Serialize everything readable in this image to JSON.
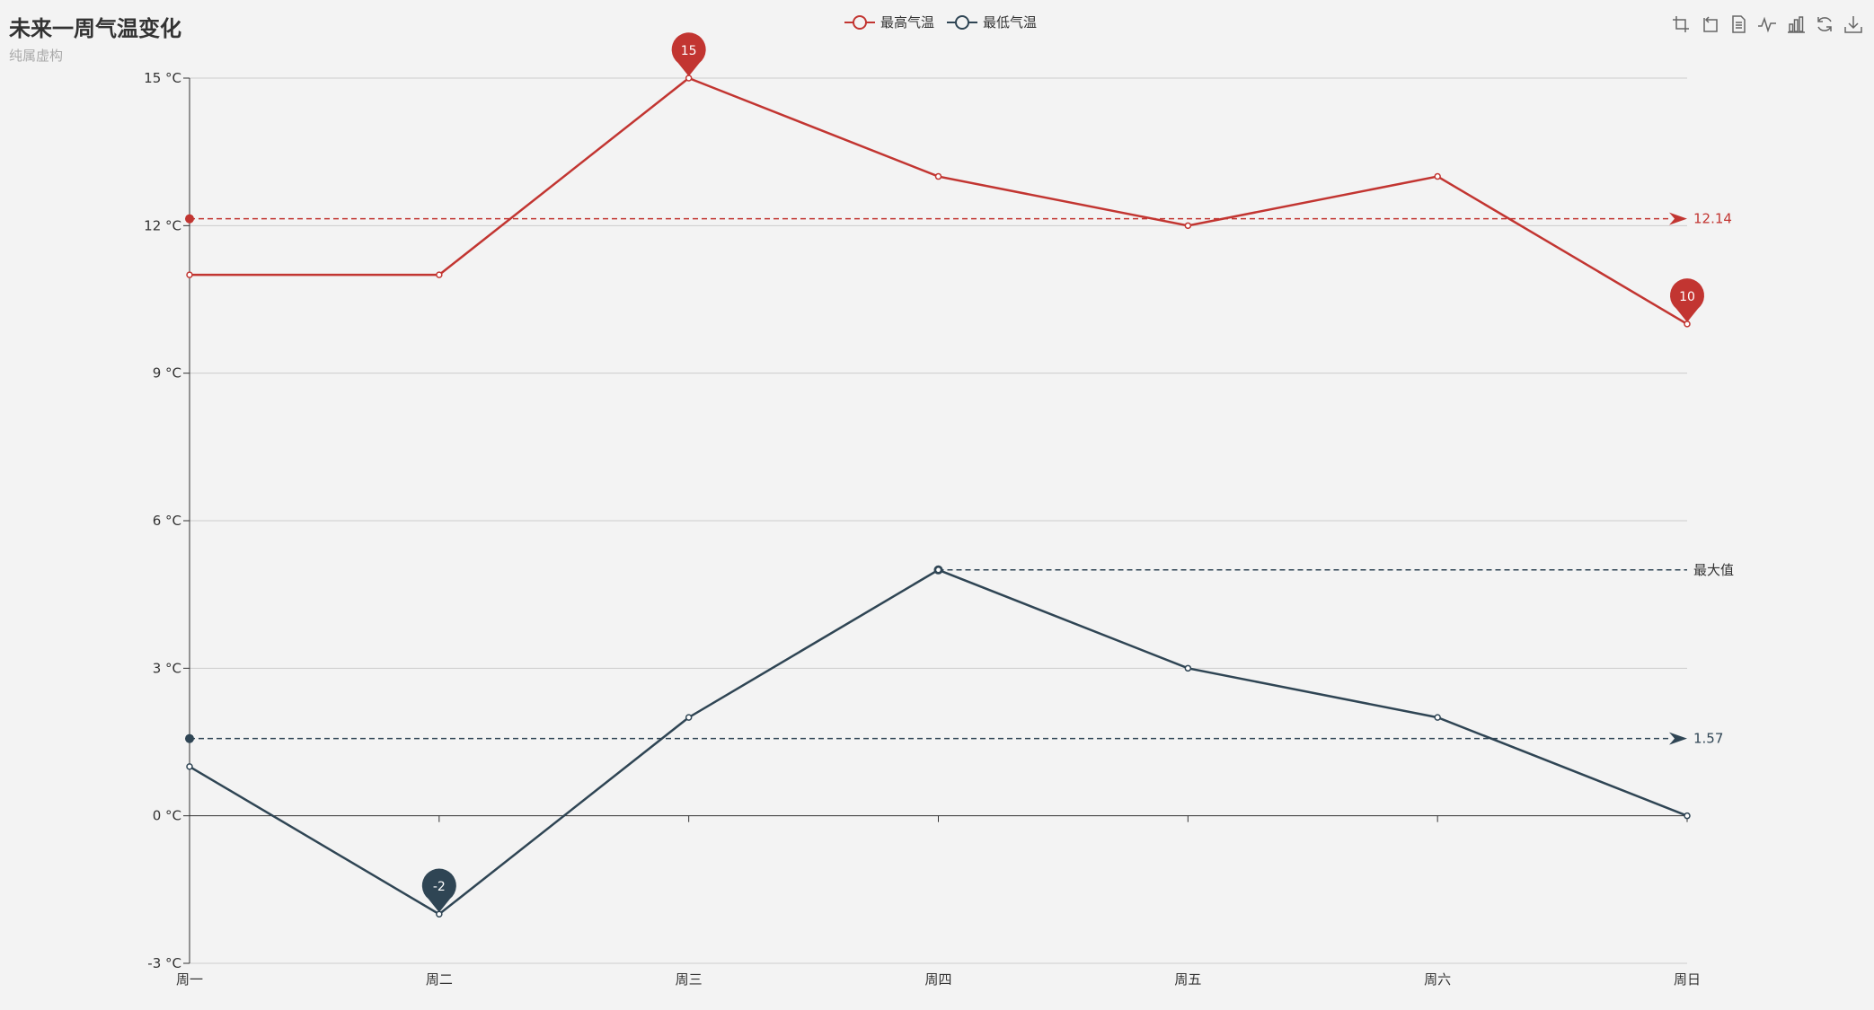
{
  "header": {
    "title": "未来一周气温变化",
    "subtitle": "纯属虚构"
  },
  "toolbox": {
    "tools": [
      {
        "name": "zoom-icon",
        "title": "区域缩放"
      },
      {
        "name": "zoom-reset-icon",
        "title": "区域缩放还原"
      },
      {
        "name": "data-view-icon",
        "title": "数据视图"
      },
      {
        "name": "line-chart-icon",
        "title": "切换为折线图"
      },
      {
        "name": "bar-chart-icon",
        "title": "切换为柱状图"
      },
      {
        "name": "restore-icon",
        "title": "还原"
      },
      {
        "name": "save-image-icon",
        "title": "保存为图片"
      }
    ]
  },
  "chart_data": {
    "type": "line",
    "title": "未来一周气温变化",
    "subtitle": "纯属虚构",
    "categories": [
      "周一",
      "周二",
      "周三",
      "周四",
      "周五",
      "周六",
      "周日"
    ],
    "y_unit": "°C",
    "ylim": [
      -3,
      15
    ],
    "y_ticks": [
      -3,
      0,
      3,
      6,
      9,
      12,
      15
    ],
    "y_tick_labels": [
      "-3 °C",
      "0 °C",
      "3 °C",
      "6 °C",
      "9 °C",
      "12 °C",
      "15 °C"
    ],
    "grid": true,
    "legend_position": "top-center",
    "series": [
      {
        "name": "最高气温",
        "color": "#c23531",
        "values": [
          11,
          11,
          15,
          13,
          12,
          13,
          10
        ],
        "mark_points": [
          {
            "category_index": 2,
            "value": 15,
            "label": "15"
          },
          {
            "category_index": 6,
            "value": 10,
            "label": "10"
          }
        ],
        "mark_lines": [
          {
            "value": 12.14,
            "label": "12.14"
          }
        ]
      },
      {
        "name": "最低气温",
        "color": "#2f4554",
        "values": [
          1,
          -2,
          2,
          5,
          3,
          2,
          0
        ],
        "mark_points": [
          {
            "category_index": 1,
            "value": -2,
            "label": "-2"
          }
        ],
        "mark_lines": [
          {
            "value": 1.57,
            "label": "1.57"
          },
          {
            "value": 5,
            "label": "最大值",
            "start_category_index": 3
          }
        ]
      }
    ]
  }
}
